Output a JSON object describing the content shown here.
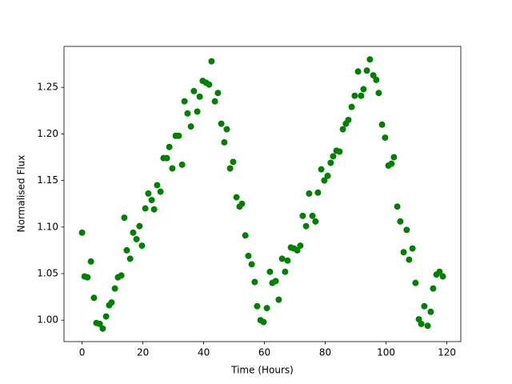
{
  "chart_data": {
    "type": "scatter",
    "xlabel": "Time (Hours)",
    "ylabel": "Normalised Flux",
    "color": "#008000",
    "xlim": [
      -5.95,
      124.6
    ],
    "ylim": [
      0.977,
      1.294
    ],
    "xticks": [
      0,
      20,
      40,
      60,
      80,
      100,
      120
    ],
    "yticks": [
      {
        "value": 1,
        "label": "1.00"
      },
      1.05,
      {
        "value": 1.1,
        "label": "1.10"
      },
      1.15,
      {
        "value": 1.2,
        "label": "1.20"
      },
      1.25
    ],
    "x": [
      0,
      0.8,
      1.8,
      2.9,
      3.9,
      4.7,
      5.8,
      6.8,
      7.9,
      8.9,
      9.7,
      10.8,
      11.8,
      12.9,
      13.9,
      14.7,
      15.8,
      16.8,
      17.9,
      18.9,
      19.7,
      20.8,
      21.8,
      22.9,
      23.7,
      24.7,
      25.8,
      26.8,
      27.9,
      28.7,
      29.7,
      30.8,
      31.8,
      32.9,
      33.7,
      34.7,
      35.8,
      36.8,
      37.9,
      38.7,
      39.7,
      40.8,
      41.8,
      42.6,
      43.7,
      44.7,
      45.8,
      46.8,
      47.6,
      48.7,
      49.7,
      50.8,
      51.8,
      52.6,
      53.7,
      54.7,
      55.8,
      56.8,
      57.6,
      58.7,
      59.7,
      60.8,
      61.8,
      62.6,
      63.7,
      64.7,
      65.8,
      66.8,
      67.6,
      68.7,
      69.7,
      70.8,
      71.8,
      72.6,
      73.7,
      74.7,
      75.8,
      76.8,
      77.6,
      78.7,
      79.7,
      80.8,
      81.8,
      82.6,
      83.7,
      84.7,
      85.8,
      86.8,
      87.6,
      88.7,
      89.7,
      90.8,
      91.8,
      92.6,
      93.7,
      94.7,
      95.8,
      96.8,
      97.6,
      98.7,
      99.7,
      100.8,
      101.8,
      102.6,
      103.7,
      104.7,
      105.8,
      106.8,
      107.6,
      108.7,
      109.7,
      110.8,
      111.6,
      112.6,
      113.7,
      114.7,
      115.5,
      116.6,
      117.6,
      118.7
    ],
    "values": [
      1.094,
      1.047,
      1.046,
      1.063,
      1.024,
      0.997,
      0.996,
      0.991,
      1.004,
      1.016,
      1.019,
      1.034,
      1.046,
      1.048,
      1.11,
      1.075,
      1.066,
      1.094,
      1.087,
      1.101,
      1.08,
      1.12,
      1.136,
      1.129,
      1.119,
      1.145,
      1.138,
      1.174,
      1.174,
      1.186,
      1.163,
      1.198,
      1.198,
      1.167,
      1.235,
      1.222,
      1.208,
      1.246,
      1.224,
      1.24,
      1.257,
      1.255,
      1.253,
      1.278,
      1.235,
      1.244,
      1.211,
      1.191,
      1.205,
      1.163,
      1.17,
      1.132,
      1.122,
      1.125,
      1.091,
      1.069,
      1.06,
      1.041,
      1.015,
      1.0,
      0.998,
      1.013,
      1.052,
      1.04,
      1.042,
      1.022,
      1.066,
      1.052,
      1.064,
      1.078,
      1.077,
      1.075,
      1.08,
      1.112,
      1.101,
      1.136,
      1.112,
      1.106,
      1.137,
      1.162,
      1.15,
      1.155,
      1.169,
      1.176,
      1.182,
      1.181,
      1.205,
      1.211,
      1.215,
      1.229,
      1.241,
      1.267,
      1.241,
      1.248,
      1.268,
      1.28,
      1.263,
      1.258,
      1.244,
      1.21,
      1.196,
      1.166,
      1.168,
      1.175,
      1.122,
      1.106,
      1.073,
      1.097,
      1.065,
      1.077,
      1.04,
      1.001,
      0.996,
      1.015,
      0.994,
      1.009,
      1.034,
      1.049,
      1.052,
      1.047
    ]
  }
}
